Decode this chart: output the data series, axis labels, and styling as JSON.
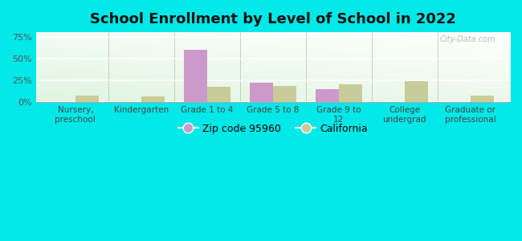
{
  "title": "School Enrollment by Level of School in 2022",
  "categories": [
    "Nursery,\npreschool",
    "Kindergarten",
    "Grade 1 to 4",
    "Grade 5 to 8",
    "Grade 9 to\n12",
    "College\nundergrad",
    "Graduate or\nprofessional"
  ],
  "zip_values": [
    0,
    0,
    60,
    22,
    15,
    0,
    0
  ],
  "ca_values": [
    8,
    7,
    18,
    19,
    20,
    24,
    8
  ],
  "zip_color": "#cc99cc",
  "ca_color": "#c8cc99",
  "background_outer": "#00e8e8",
  "background_grad_top": "#ffffff",
  "background_grad_bottom": "#c8eec8",
  "yticks": [
    0,
    25,
    50,
    75
  ],
  "ylim": [
    0,
    80
  ],
  "zip_label": "Zip code 95960",
  "ca_label": "California",
  "title_fontsize": 13,
  "bar_width": 0.35
}
